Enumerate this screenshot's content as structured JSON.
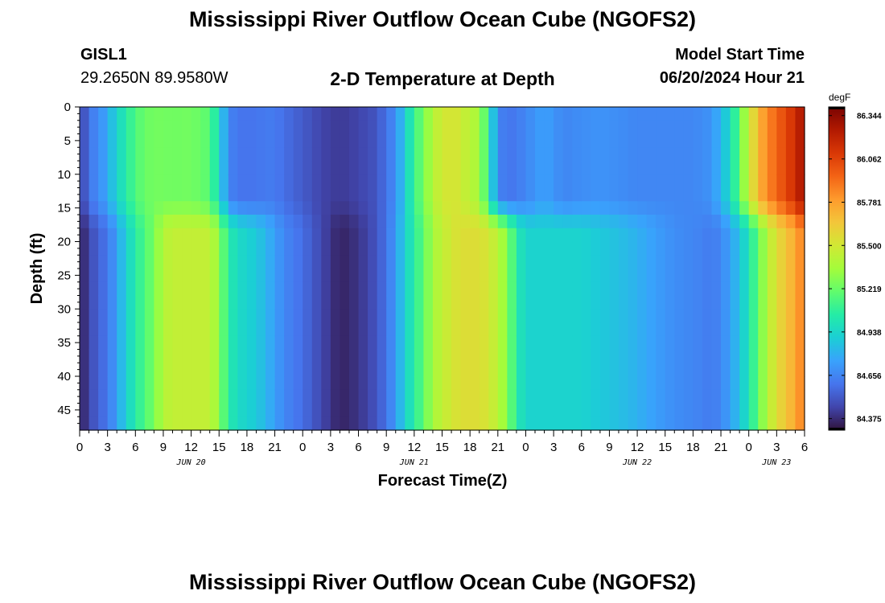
{
  "header": {
    "title": "Mississippi River Outflow Ocean Cube (NGOFS2)",
    "station_id": "GISL1",
    "station_coords": "29.2650N  89.9580W",
    "plot_title": "2-D Temperature at Depth",
    "model_start_label": "Model Start Time",
    "model_start_value": "06/20/2024 Hour 21"
  },
  "footer": {
    "title": "Mississippi River Outflow Ocean Cube (NGOFS2)"
  },
  "chart_data": {
    "type": "heatmap",
    "xlabel": "Forecast Time(Z)",
    "ylabel": "Depth (ft)",
    "x_range_hours": [
      0,
      78
    ],
    "ylim": [
      0,
      48
    ],
    "y_ticks": [
      0,
      5,
      10,
      15,
      20,
      25,
      30,
      35,
      40,
      45
    ],
    "x_ticks": [
      {
        "h": 0,
        "label": "0"
      },
      {
        "h": 3,
        "label": "3"
      },
      {
        "h": 6,
        "label": "6"
      },
      {
        "h": 9,
        "label": "9"
      },
      {
        "h": 12,
        "label": "12"
      },
      {
        "h": 15,
        "label": "15"
      },
      {
        "h": 18,
        "label": "18"
      },
      {
        "h": 21,
        "label": "21"
      },
      {
        "h": 24,
        "label": "0"
      },
      {
        "h": 27,
        "label": "3"
      },
      {
        "h": 30,
        "label": "6"
      },
      {
        "h": 33,
        "label": "9"
      },
      {
        "h": 36,
        "label": "12"
      },
      {
        "h": 39,
        "label": "15"
      },
      {
        "h": 42,
        "label": "18"
      },
      {
        "h": 45,
        "label": "21"
      },
      {
        "h": 48,
        "label": "0"
      },
      {
        "h": 51,
        "label": "3"
      },
      {
        "h": 54,
        "label": "6"
      },
      {
        "h": 57,
        "label": "9"
      },
      {
        "h": 60,
        "label": "12"
      },
      {
        "h": 63,
        "label": "15"
      },
      {
        "h": 66,
        "label": "18"
      },
      {
        "h": 69,
        "label": "21"
      },
      {
        "h": 72,
        "label": "0"
      },
      {
        "h": 75,
        "label": "3"
      },
      {
        "h": 78,
        "label": "6"
      }
    ],
    "date_labels": [
      {
        "h": 12,
        "label": "JUN 20"
      },
      {
        "h": 36,
        "label": "JUN 21"
      },
      {
        "h": 60,
        "label": "JUN 22"
      },
      {
        "h": 75,
        "label": "JUN 23"
      }
    ],
    "colorbar": {
      "unit": "degF",
      "min": 84.3,
      "max": 86.4,
      "tick_values": [
        86.344,
        86.062,
        85.781,
        85.5,
        85.219,
        84.938,
        84.656,
        84.375
      ],
      "tick_labels": [
        "86.344",
        "86.062",
        "85.781",
        "85.500",
        "85.219",
        "84.938",
        "84.656",
        "84.375"
      ],
      "colormap": [
        "#30123b",
        "#4145ab",
        "#4675ed",
        "#39a2fc",
        "#1bcfd4",
        "#24eca6",
        "#61fc6c",
        "#a4fc3b",
        "#d1e834",
        "#f3c63a",
        "#fe9b2d",
        "#f36315",
        "#d93806",
        "#b11901",
        "#7a0402"
      ]
    },
    "time_series_deg_f": {
      "hours": [
        0,
        1,
        2,
        3,
        4,
        5,
        6,
        7,
        8,
        9,
        10,
        12,
        14,
        15,
        16,
        17,
        18,
        19,
        20,
        21,
        22,
        23,
        24,
        26,
        28,
        30,
        32,
        33,
        34,
        35,
        36,
        37,
        38,
        39,
        40,
        41,
        42,
        43,
        44,
        45,
        46,
        47,
        48,
        50,
        52,
        54,
        56,
        58,
        60,
        62,
        64,
        66,
        68,
        69,
        70,
        71,
        72,
        73,
        74,
        75,
        76,
        77,
        78
      ],
      "surface": [
        84.4,
        84.62,
        84.66,
        84.78,
        84.92,
        85.05,
        85.15,
        85.22,
        85.24,
        85.24,
        85.23,
        85.24,
        85.18,
        84.95,
        84.66,
        84.6,
        84.6,
        84.6,
        84.62,
        84.62,
        84.58,
        84.55,
        84.52,
        84.45,
        84.42,
        84.45,
        84.5,
        84.6,
        84.68,
        84.9,
        85.1,
        85.25,
        85.4,
        85.5,
        85.52,
        85.5,
        85.4,
        85.38,
        85.05,
        84.66,
        84.6,
        84.62,
        84.66,
        84.75,
        84.66,
        84.68,
        84.7,
        84.68,
        84.66,
        84.66,
        84.66,
        84.66,
        84.7,
        84.82,
        84.95,
        85.2,
        85.45,
        85.7,
        85.85,
        85.95,
        86.05,
        86.15,
        86.3
      ],
      "bottom": [
        84.33,
        84.45,
        84.55,
        84.6,
        84.75,
        84.9,
        85.05,
        85.15,
        85.25,
        85.4,
        85.45,
        85.45,
        85.45,
        85.3,
        85.05,
        84.95,
        84.92,
        84.88,
        84.82,
        84.74,
        84.66,
        84.62,
        84.58,
        84.46,
        84.35,
        84.4,
        84.5,
        84.6,
        84.72,
        84.92,
        85.05,
        85.2,
        85.35,
        85.45,
        85.5,
        85.55,
        85.55,
        85.55,
        85.5,
        85.42,
        85.28,
        85.05,
        84.92,
        84.92,
        84.92,
        84.92,
        84.88,
        84.85,
        84.8,
        84.74,
        84.68,
        84.66,
        84.62,
        84.66,
        84.75,
        84.85,
        85.0,
        85.2,
        85.4,
        85.55,
        85.65,
        85.75,
        85.9
      ]
    }
  }
}
